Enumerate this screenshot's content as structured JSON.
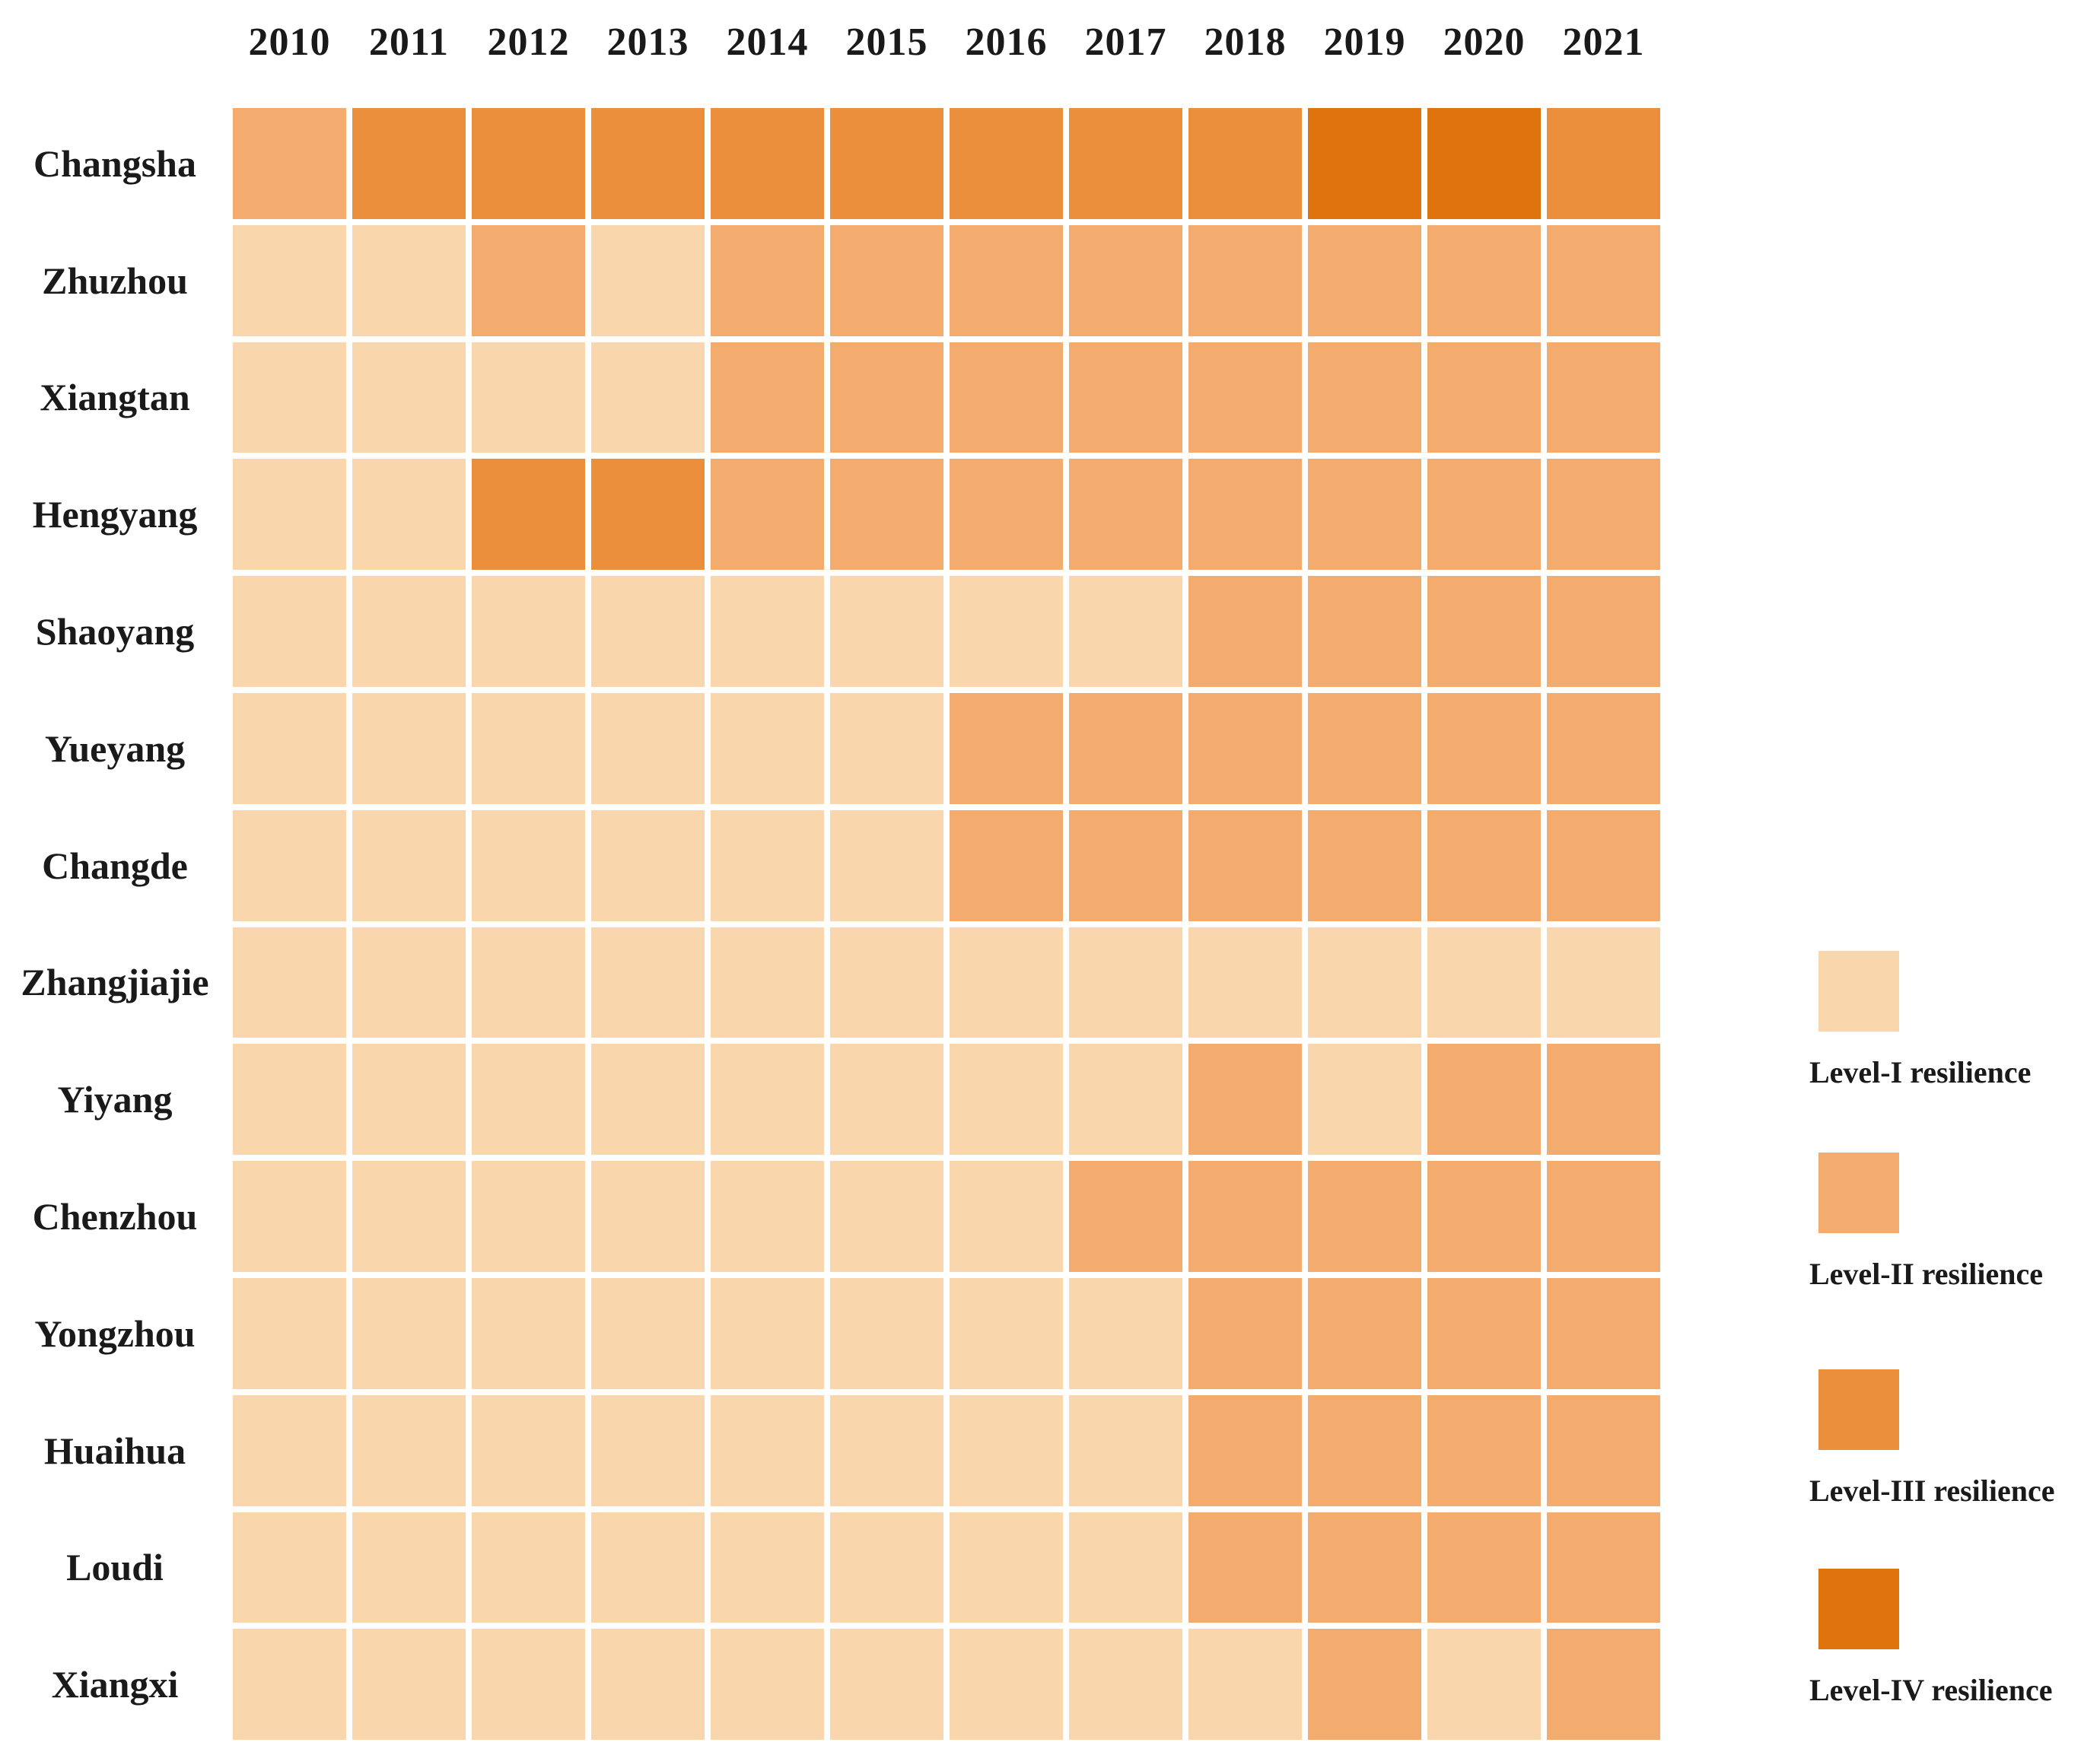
{
  "chart_data": {
    "type": "heatmap",
    "title": "",
    "x": [
      "2010",
      "2011",
      "2012",
      "2013",
      "2014",
      "2015",
      "2016",
      "2017",
      "2018",
      "2019",
      "2020",
      "2021"
    ],
    "rows": [
      {
        "name": "Changsha",
        "levels": [
          2,
          3,
          3,
          3,
          3,
          3,
          3,
          3,
          3,
          4,
          4,
          3
        ]
      },
      {
        "name": "Zhuzhou",
        "levels": [
          1,
          1,
          2,
          1,
          2,
          2,
          2,
          2,
          2,
          2,
          2,
          2
        ]
      },
      {
        "name": "Xiangtan",
        "levels": [
          1,
          1,
          1,
          1,
          2,
          2,
          2,
          2,
          2,
          2,
          2,
          2
        ]
      },
      {
        "name": "Hengyang",
        "levels": [
          1,
          1,
          3,
          3,
          2,
          2,
          2,
          2,
          2,
          2,
          2,
          2
        ]
      },
      {
        "name": "Shaoyang",
        "levels": [
          1,
          1,
          1,
          1,
          1,
          1,
          1,
          1,
          2,
          2,
          2,
          2
        ]
      },
      {
        "name": "Yueyang",
        "levels": [
          1,
          1,
          1,
          1,
          1,
          1,
          2,
          2,
          2,
          2,
          2,
          2
        ]
      },
      {
        "name": "Changde",
        "levels": [
          1,
          1,
          1,
          1,
          1,
          1,
          2,
          2,
          2,
          2,
          2,
          2
        ]
      },
      {
        "name": "Zhangjiajie",
        "levels": [
          1,
          1,
          1,
          1,
          1,
          1,
          1,
          1,
          1,
          1,
          1,
          1
        ]
      },
      {
        "name": "Yiyang",
        "levels": [
          1,
          1,
          1,
          1,
          1,
          1,
          1,
          1,
          2,
          1,
          2,
          2
        ]
      },
      {
        "name": "Chenzhou",
        "levels": [
          1,
          1,
          1,
          1,
          1,
          1,
          1,
          2,
          2,
          2,
          2,
          2
        ]
      },
      {
        "name": "Yongzhou",
        "levels": [
          1,
          1,
          1,
          1,
          1,
          1,
          1,
          1,
          2,
          2,
          2,
          2
        ]
      },
      {
        "name": "Huaihua",
        "levels": [
          1,
          1,
          1,
          1,
          1,
          1,
          1,
          1,
          2,
          2,
          2,
          2
        ]
      },
      {
        "name": "Loudi",
        "levels": [
          1,
          1,
          1,
          1,
          1,
          1,
          1,
          1,
          2,
          2,
          2,
          2
        ]
      },
      {
        "name": "Xiangxi",
        "levels": [
          1,
          1,
          1,
          1,
          1,
          1,
          1,
          1,
          1,
          2,
          1,
          2
        ]
      }
    ],
    "value_scale": {
      "1": "Level-I",
      "2": "Level-II",
      "3": "Level-III",
      "4": "Level-IV"
    },
    "palette": {
      "1": "#FAD6AC",
      "2": "#F3AC6D",
      "3": "#EB8F3D",
      "4": "#DF730E"
    },
    "legend": [
      {
        "label": "Level-I resilience",
        "color": "#FAD6AC"
      },
      {
        "label": "Level-II resilience",
        "color": "#F3AC6D"
      },
      {
        "label": "Level-III resilience",
        "color": "#EB8F3D"
      },
      {
        "label": "Level-IV resilience",
        "color": "#DF730E"
      }
    ],
    "legend_position": "right",
    "grid": "white-gaps",
    "axes": {
      "x_axis": "year",
      "y_axis": "city"
    }
  }
}
